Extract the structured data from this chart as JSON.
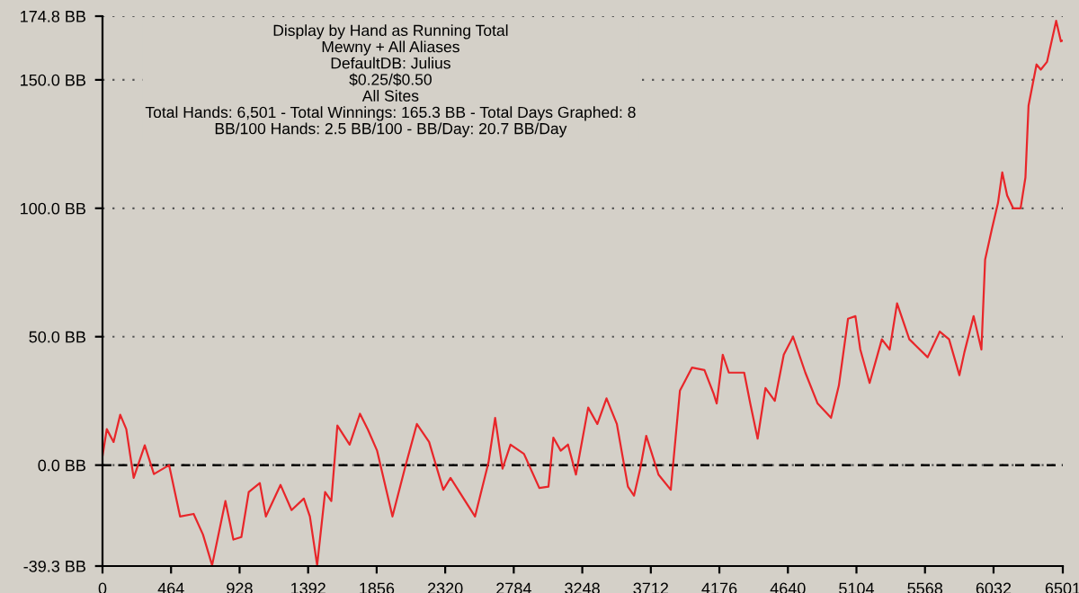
{
  "chart_data": {
    "type": "line",
    "x": [
      0,
      29,
      75,
      120,
      161,
      211,
      286,
      348,
      451,
      525,
      617,
      680,
      742,
      832,
      886,
      940,
      990,
      1065,
      1106,
      1205,
      1280,
      1363,
      1404,
      1453,
      1507,
      1549,
      1590,
      1673,
      1743,
      1797,
      1859,
      1963,
      2046,
      2128,
      2211,
      2307,
      2356,
      2522,
      2613,
      2658,
      2708,
      2762,
      2853,
      2957,
      3019,
      3052,
      3102,
      3151,
      3205,
      3288,
      3350,
      3412,
      3482,
      3557,
      3598,
      3640,
      3681,
      3764,
      3847,
      3909,
      3991,
      4075,
      4137,
      4158,
      4199,
      4240,
      4344,
      4385,
      4435,
      4488,
      4551,
      4612,
      4675,
      4758,
      4841,
      4932,
      4985,
      5047,
      5097,
      5130,
      5193,
      5276,
      5329,
      5379,
      5462,
      5586,
      5668,
      5731,
      5801,
      5835,
      5897,
      5950,
      5975,
      6021,
      6062,
      6091,
      6124,
      6165,
      6215,
      6248,
      6269,
      6323,
      6352,
      6394,
      6456,
      6488,
      6501
    ],
    "series": [
      {
        "color": "#e8262a",
        "values": [
          3.5,
          14,
          9,
          19.6,
          14,
          -5,
          7.7,
          -3.5,
          0,
          -20,
          -19,
          -27,
          -39,
          -14,
          -29,
          -28,
          -10.5,
          -7,
          -20,
          -7.7,
          -17.5,
          -13,
          -20,
          -39,
          -10.5,
          -14,
          15.4,
          8,
          20,
          13.8,
          5.6,
          -20,
          -1.4,
          16,
          9,
          -9.6,
          -5,
          -20,
          1,
          18.4,
          -1.4,
          8,
          4.4,
          -8.9,
          -8.4,
          10.7,
          5.6,
          8,
          -3.7,
          22.4,
          16,
          26,
          16,
          -8.4,
          -11.9,
          -1.4,
          11.4,
          -3.7,
          -9.6,
          29,
          38,
          37,
          27.8,
          24,
          43,
          36,
          36,
          24,
          10.3,
          30,
          25,
          43,
          50,
          36,
          24,
          18.4,
          31,
          57,
          58,
          45,
          32,
          49,
          45,
          63,
          49,
          42,
          52,
          49,
          35,
          44,
          58,
          45,
          80,
          92,
          102,
          114,
          105,
          100,
          100,
          112,
          140,
          156,
          154,
          157,
          173,
          165,
          165.3
        ]
      }
    ],
    "xlim": [
      0,
      6501
    ],
    "xticks": [
      0,
      464,
      928,
      1392,
      1856,
      2320,
      2784,
      3248,
      3712,
      4176,
      4640,
      5104,
      5568,
      6032,
      6501
    ],
    "ylim": [
      -39.3,
      174.8
    ],
    "yticks": [
      {
        "value": -39.3,
        "label": "-39.3 BB"
      },
      {
        "value": 0,
        "label": "0.0 BB"
      },
      {
        "value": 50,
        "label": "50.0 BB"
      },
      {
        "value": 100,
        "label": "100.0 BB"
      },
      {
        "value": 150,
        "label": "150.0 BB"
      },
      {
        "value": 174.8,
        "label": "174.8 BB"
      }
    ],
    "grid": "y",
    "ref_lines": [
      {
        "axis": "y",
        "value": 0,
        "color": "#000000",
        "line_style": "dashed"
      }
    ],
    "line_style": "solid",
    "annotations": [
      "Display by Hand as Running Total",
      "Mewny + All Aliases",
      "DefaultDB: Julius",
      "$0.25/$0.50",
      "All Sites",
      "Total Hands: 6,501 - Total Winnings: 165.3 BB - Total Days Graphed: 8",
      "BB/100 Hands: 2.5 BB/100 - BB/Day: 20.7 BB/Day"
    ]
  }
}
